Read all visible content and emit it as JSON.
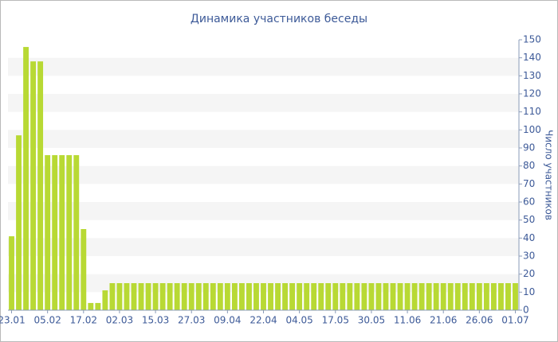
{
  "chart_data": {
    "type": "bar",
    "title": "Динамика участников беседы",
    "y_label": "Число участников",
    "categories": [
      "23.01",
      null,
      null,
      null,
      null,
      "05.02",
      null,
      null,
      null,
      null,
      "17.02",
      null,
      null,
      null,
      null,
      "02.03",
      null,
      null,
      null,
      null,
      "15.03",
      null,
      null,
      null,
      null,
      "27.03",
      null,
      null,
      null,
      null,
      "09.04",
      null,
      null,
      null,
      null,
      "22.04",
      null,
      null,
      null,
      null,
      "04.05",
      null,
      null,
      null,
      null,
      "17.05",
      null,
      null,
      null,
      null,
      "30.05",
      null,
      null,
      null,
      null,
      "11.06",
      null,
      null,
      null,
      null,
      "21.06",
      null,
      null,
      null,
      null,
      "26.06",
      null,
      null,
      null,
      null,
      "01.07"
    ],
    "values": [
      41,
      97,
      146,
      138,
      138,
      86,
      86,
      86,
      86,
      86,
      45,
      4,
      4,
      11,
      15,
      15,
      15,
      15,
      15,
      15,
      15,
      15,
      15,
      15,
      15,
      15,
      15,
      15,
      15,
      15,
      15,
      15,
      15,
      15,
      15,
      15,
      15,
      15,
      15,
      15,
      15,
      15,
      15,
      15,
      15,
      15,
      15,
      15,
      15,
      15,
      15,
      15,
      15,
      15,
      15,
      15,
      15,
      15,
      15,
      15,
      15,
      15,
      15,
      15,
      15,
      15,
      15,
      15,
      15,
      15,
      15
    ],
    "color": "#b8d934",
    "ylim": [
      0,
      150
    ],
    "yticks": [
      0,
      10,
      20,
      30,
      40,
      50,
      60,
      70,
      80,
      90,
      100,
      110,
      120,
      130,
      140,
      150
    ],
    "grid": true
  }
}
